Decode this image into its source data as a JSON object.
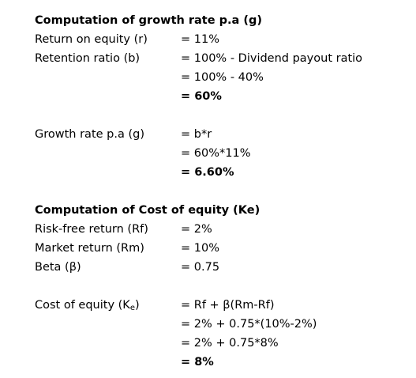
{
  "growth": {
    "heading": "Computation of growth rate p.a (g)",
    "roe_label": "Return on equity (r)",
    "roe_value": "= 11%",
    "retention_label": "Retention ratio (b)",
    "retention_step1": "= 100% - Dividend payout ratio",
    "retention_step2": "= 100% - 40%",
    "retention_result": "= 60%",
    "g_label": "Growth rate p.a (g)",
    "g_step1": "= b*r",
    "g_step2": "= 60%*11%",
    "g_result": "= 6.60%"
  },
  "cost_of_equity": {
    "heading": "Computation of Cost of equity (Ke)",
    "rf_label": "Risk-free return (Rf)",
    "rf_value": "= 2%",
    "rm_label": "Market return (Rm)",
    "rm_value": "= 10%",
    "beta_label": "Beta (β)",
    "beta_value": "= 0.75",
    "ke_label_main": "Cost of equity (K",
    "ke_label_sub": "e",
    "ke_label_close": ")",
    "ke_step1": "= Rf + β(Rm-Rf)",
    "ke_step2": "= 2% + 0.75*(10%-2%)",
    "ke_step3": "= 2% + 0.75*8%",
    "ke_result": "= 8%"
  }
}
